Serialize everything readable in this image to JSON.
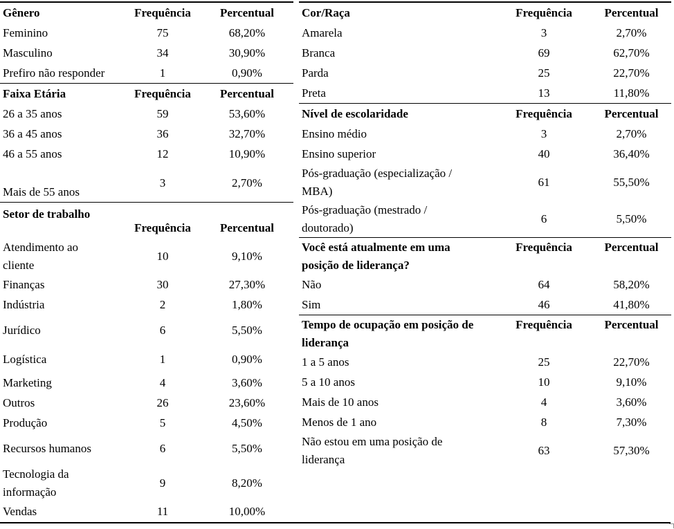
{
  "document": {
    "column_headers": {
      "frequency": "Frequência",
      "percentual": "Percentual"
    },
    "left_tables": [
      {
        "title": "Gênero",
        "rows": [
          {
            "label": "Feminino",
            "frequency": "75",
            "percentual": "68,20%"
          },
          {
            "label": "Masculino",
            "frequency": "34",
            "percentual": "30,90%"
          },
          {
            "label": "Prefiro não responder",
            "frequency": "1",
            "percentual": "0,90%"
          }
        ]
      },
      {
        "title": "Faixa Etária",
        "rows": [
          {
            "label": "26 a 35 anos",
            "frequency": "59",
            "percentual": "53,60%"
          },
          {
            "label": "36 a 45 anos",
            "frequency": "36",
            "percentual": "32,70%"
          },
          {
            "label": "46 a 55 anos",
            "frequency": "12",
            "percentual": "10,90%"
          },
          {
            "label": "Mais de 55 anos",
            "frequency": "3",
            "percentual": "2,70%",
            "row_style": "tall_bottom"
          }
        ]
      },
      {
        "title": "Setor de trabalho",
        "header_style": "tall",
        "rows": [
          {
            "label": "Atendimento ao\ncliente",
            "frequency": "10",
            "percentual": "9,10%"
          },
          {
            "label": "Finanças",
            "frequency": "30",
            "percentual": "27,30%"
          },
          {
            "label": "Indústria",
            "frequency": "2",
            "percentual": "1,80%"
          },
          {
            "label": "Jurídico",
            "frequency": "6",
            "percentual": "5,50%",
            "row_style": "tall"
          },
          {
            "label": "Logística",
            "frequency": "1",
            "percentual": "0,90%",
            "row_style": "med"
          },
          {
            "label": "Marketing",
            "frequency": "4",
            "percentual": "3,60%"
          },
          {
            "label": "Outros",
            "frequency": "26",
            "percentual": "23,60%"
          },
          {
            "label": "Produção",
            "frequency": "5",
            "percentual": "4,50%"
          },
          {
            "label": "Recursos humanos",
            "frequency": "6",
            "percentual": "5,50%",
            "row_style": "tall"
          },
          {
            "label": "Tecnologia da\ninformação",
            "frequency": "9",
            "percentual": "8,20%"
          },
          {
            "label": "Vendas",
            "frequency": "11",
            "percentual": "10,00%"
          }
        ]
      }
    ],
    "right_tables": [
      {
        "title": "Cor/Raça",
        "rows": [
          {
            "label": "Amarela",
            "frequency": "3",
            "percentual": "2,70%"
          },
          {
            "label": "Branca",
            "frequency": "69",
            "percentual": "62,70%"
          },
          {
            "label": "Parda",
            "frequency": "25",
            "percentual": "22,70%"
          },
          {
            "label": "Preta",
            "frequency": "13",
            "percentual": "11,80%"
          }
        ]
      },
      {
        "title": "Nível de escolaridade",
        "rows": [
          {
            "label": "Ensino médio",
            "frequency": "3",
            "percentual": "2,70%"
          },
          {
            "label": "Ensino superior",
            "frequency": "40",
            "percentual": "36,40%"
          },
          {
            "label": "Pós-graduação (especialização /\nMBA)",
            "frequency": "61",
            "percentual": "55,50%"
          },
          {
            "label": "Pós-graduação (mestrado /\ndoutorado)",
            "frequency": "6",
            "percentual": "5,50%"
          }
        ]
      },
      {
        "title": "Você está atualmente em uma\nposição de liderança?",
        "header_style": "wrap",
        "rows": [
          {
            "label": "Não",
            "frequency": "64",
            "percentual": "58,20%"
          },
          {
            "label": "Sim",
            "frequency": "46",
            "percentual": "41,80%"
          }
        ]
      },
      {
        "title": "Tempo de ocupação em posição de\nliderança",
        "header_style": "wrap",
        "rows": [
          {
            "label": "1 a 5 anos",
            "frequency": "25",
            "percentual": "22,70%"
          },
          {
            "label": "5 a 10 anos",
            "frequency": "10",
            "percentual": "9,10%"
          },
          {
            "label": "Mais de 10 anos",
            "frequency": "4",
            "percentual": "3,60%"
          },
          {
            "label": "Menos de 1 ano",
            "frequency": "8",
            "percentual": "7,30%"
          },
          {
            "label": "Não estou em uma posição de\nliderança",
            "frequency": "63",
            "percentual": "57,30%"
          }
        ]
      }
    ]
  }
}
